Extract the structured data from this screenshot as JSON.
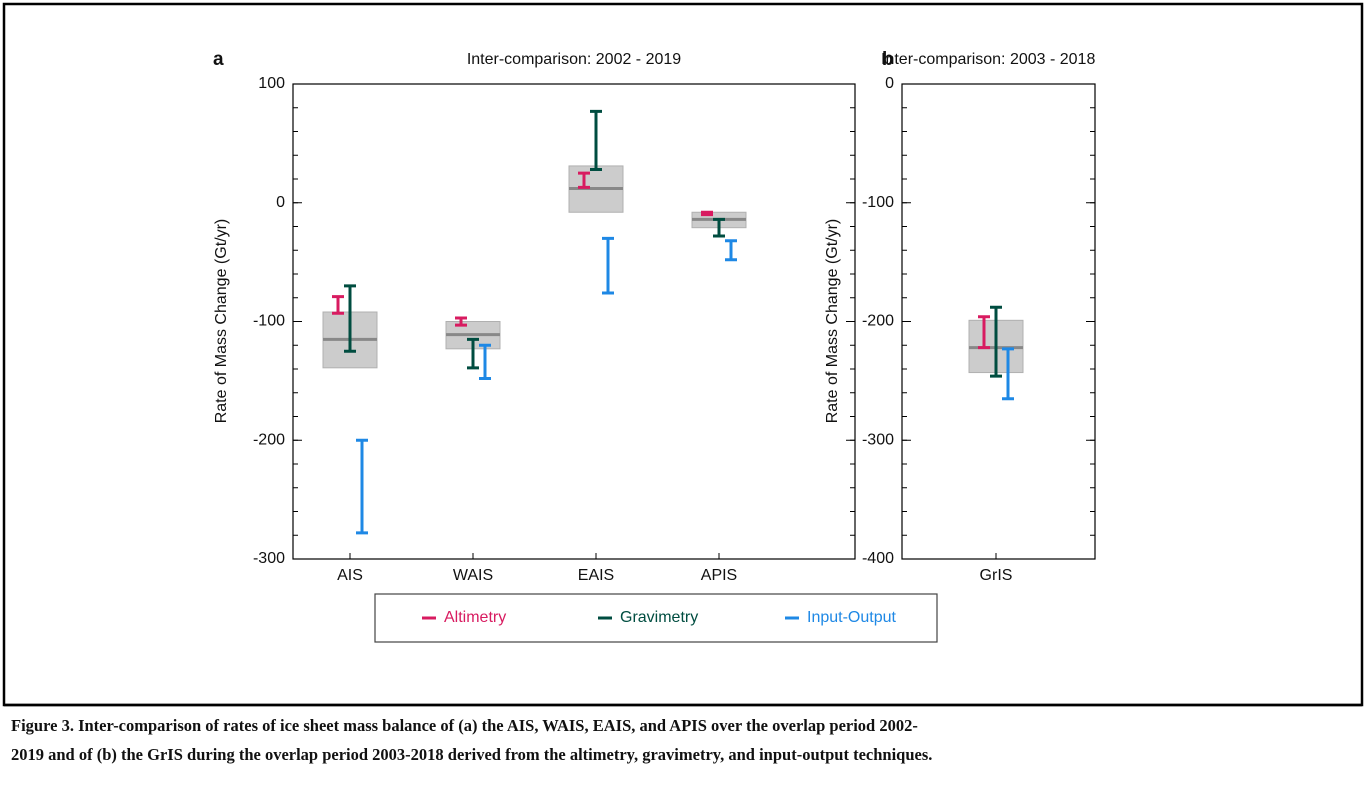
{
  "chart_data": [
    {
      "type": "errorbar",
      "panel_label": "a",
      "title": "Inter-comparison: 2002 - 2019",
      "ylabel": "Rate of Mass Change (Gt/yr)",
      "categories": [
        "AIS",
        "WAIS",
        "EAIS",
        "APIS"
      ],
      "ylim": [
        -300,
        100
      ],
      "yticks": [
        -300,
        -200,
        -100,
        0,
        100
      ],
      "minor_tick_step": 20,
      "range": {
        "color": "#cccccc",
        "mean_color": "#888888",
        "low": [
          -139,
          -123,
          -8,
          -21
        ],
        "high": [
          -92,
          -100,
          31,
          -8
        ],
        "mean": [
          -115,
          -111,
          12,
          -14
        ]
      },
      "series": [
        {
          "name": "Altimetry",
          "color": "#d81b60",
          "low": [
            -93,
            -103,
            13,
            -10
          ],
          "high": [
            -79,
            -97,
            25,
            -8
          ]
        },
        {
          "name": "Gravimetry",
          "color": "#004d40",
          "low": [
            -125,
            -139,
            28,
            -28
          ],
          "high": [
            -70,
            -115,
            77,
            -14
          ]
        },
        {
          "name": "Input-Output",
          "color": "#1e88e5",
          "low": [
            -278,
            -148,
            -76,
            -48
          ],
          "high": [
            -200,
            -120,
            -30,
            -32
          ]
        }
      ]
    },
    {
      "type": "errorbar",
      "panel_label": "b",
      "title": "Inter-comparison: 2003 - 2018",
      "ylabel": "Rate of Mass Change (Gt/yr)",
      "categories": [
        "GrIS"
      ],
      "ylim": [
        -400,
        0
      ],
      "yticks": [
        -400,
        -300,
        -200,
        -100,
        0
      ],
      "minor_tick_step": 20,
      "range": {
        "color": "#cccccc",
        "mean_color": "#888888",
        "low": [
          -243
        ],
        "high": [
          -199
        ],
        "mean": [
          -222
        ]
      },
      "series": [
        {
          "color": "#d81b60",
          "low": [
            -222
          ],
          "high": [
            -196
          ]
        },
        {
          "color": "#004d40",
          "low": [
            -246
          ],
          "high": [
            -188
          ]
        },
        {
          "color": "#1e88e5",
          "low": [
            -265
          ],
          "high": [
            -223
          ]
        }
      ]
    }
  ],
  "caption": [
    "Figure 3. Inter-comparison of rates of ice sheet mass balance of (a) the AIS, WAIS, EAIS, and APIS over the overlap period 2002-",
    "2019 and of (b) the GrIS during the overlap period 2003-2018 derived from the altimetry, gravimetry, and input-output techniques."
  ]
}
